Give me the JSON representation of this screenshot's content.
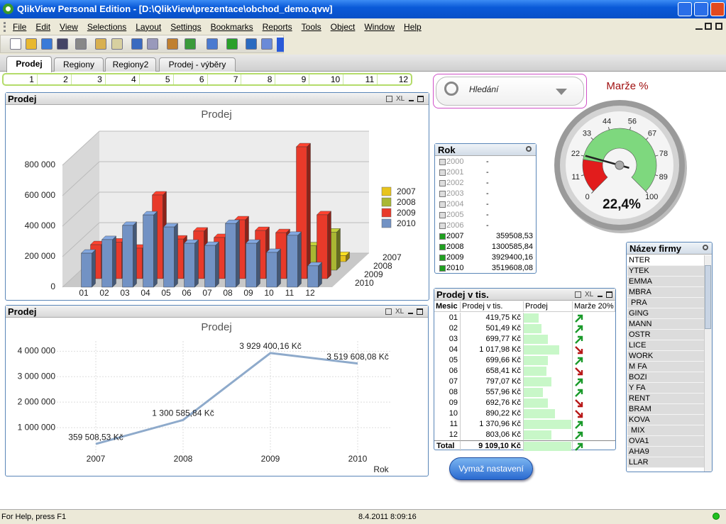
{
  "window": {
    "title": "QlikView Personal Edition - [D:\\QlikView\\prezentace\\obchod_demo.qvw]"
  },
  "menu": [
    "File",
    "Edit",
    "View",
    "Selections",
    "Layout",
    "Settings",
    "Bookmarks",
    "Reports",
    "Tools",
    "Object",
    "Window",
    "Help"
  ],
  "tabs": {
    "items": [
      "Prodej",
      "Regiony",
      "Regiony2",
      "Prodej - výběry"
    ],
    "active": 0
  },
  "month_bar": [
    "1",
    "2",
    "3",
    "4",
    "5",
    "6",
    "7",
    "8",
    "9",
    "10",
    "11",
    "12"
  ],
  "search": {
    "placeholder": "Hledání"
  },
  "panel_icon_label": "XL",
  "rok_list": {
    "title": "Rok",
    "rows": [
      {
        "year": "2000",
        "value": "-",
        "selected": false
      },
      {
        "year": "2001",
        "value": "-",
        "selected": false
      },
      {
        "year": "2002",
        "value": "-",
        "selected": false
      },
      {
        "year": "2003",
        "value": "-",
        "selected": false
      },
      {
        "year": "2004",
        "value": "-",
        "selected": false
      },
      {
        "year": "2005",
        "value": "-",
        "selected": false
      },
      {
        "year": "2006",
        "value": "-",
        "selected": false
      },
      {
        "year": "2007",
        "value": "359508,53",
        "selected": true
      },
      {
        "year": "2008",
        "value": "1300585,84",
        "selected": true
      },
      {
        "year": "2009",
        "value": "3929400,16",
        "selected": true
      },
      {
        "year": "2010",
        "value": "3519608,08",
        "selected": true
      }
    ]
  },
  "table": {
    "title": "Prodej v tis.",
    "headers": [
      "Mesic",
      "Prodej v tis.",
      "Prodej",
      "Marže 20%"
    ],
    "rows": [
      {
        "month": "01",
        "value": 419.75,
        "label": "419,75 Kč",
        "trend": "up"
      },
      {
        "month": "02",
        "value": 501.49,
        "label": "501,49 Kč",
        "trend": "up"
      },
      {
        "month": "03",
        "value": 699.77,
        "label": "699,77 Kč",
        "trend": "up"
      },
      {
        "month": "04",
        "value": 1017.98,
        "label": "1 017,98 Kč",
        "trend": "down"
      },
      {
        "month": "05",
        "value": 699.66,
        "label": "699,66 Kč",
        "trend": "up"
      },
      {
        "month": "06",
        "value": 658.41,
        "label": "658,41 Kč",
        "trend": "down"
      },
      {
        "month": "07",
        "value": 797.07,
        "label": "797,07 Kč",
        "trend": "up"
      },
      {
        "month": "08",
        "value": 557.96,
        "label": "557,96 Kč",
        "trend": "up"
      },
      {
        "month": "09",
        "value": 692.76,
        "label": "692,76 Kč",
        "trend": "down"
      },
      {
        "month": "10",
        "value": 890.22,
        "label": "890,22 Kč",
        "trend": "down"
      },
      {
        "month": "11",
        "value": 1370.96,
        "label": "1 370,96 Kč",
        "trend": "up"
      },
      {
        "month": "12",
        "value": 803.06,
        "label": "803,06 Kč",
        "trend": "up"
      }
    ],
    "total": {
      "month": "Total",
      "value": 9109.1,
      "label": "9 109,10 Kč",
      "trend": "up"
    }
  },
  "firm_list": {
    "title": "Název firmy",
    "items": [
      "NTER",
      "YTEK",
      "EMMA",
      "MBRA",
      " PRA",
      "GING",
      "MANN",
      "OSTR",
      "LICE",
      "WORK",
      "M FA",
      "BOZI",
      "Y FA",
      "RENT",
      "BRAM",
      "KOVA",
      " MIX",
      "OVA1",
      "AHA9",
      "LLAR"
    ]
  },
  "button": "Vymaž nastavení",
  "status": {
    "help": "For Help, press F1",
    "datetime": "8.4.2011 8:09:16"
  },
  "chart_data": [
    {
      "type": "bar3d",
      "caption": "Prodej",
      "title": "Prodej",
      "categories": [
        "01",
        "02",
        "03",
        "04",
        "05",
        "06",
        "07",
        "08",
        "09",
        "10",
        "11",
        "12"
      ],
      "series": [
        {
          "name": "2007",
          "color": "#e8c41c",
          "values": [
            20000,
            30000,
            25000,
            40000,
            30000,
            35000,
            30000,
            40000,
            35000,
            40000,
            45000,
            40000
          ]
        },
        {
          "name": "2008",
          "color": "#a9b733",
          "values": [
            60000,
            70000,
            60000,
            120000,
            80000,
            110000,
            90000,
            120000,
            100000,
            110000,
            160000,
            250000
          ]
        },
        {
          "name": "2009",
          "color": "#e83a2a",
          "values": [
            223000,
            240000,
            200000,
            549000,
            260000,
            312000,
            270000,
            386000,
            316000,
            302000,
            865000,
            419000
          ]
        },
        {
          "name": "2010",
          "color": "#7292c4",
          "values": [
            223000,
            312000,
            405000,
            474000,
            395000,
            288000,
            274000,
            418000,
            288000,
            228000,
            340000,
            140000
          ]
        }
      ],
      "ylim": [
        0,
        800000
      ],
      "yticks": [
        0,
        {
          "value": 200000,
          "label": "200 000"
        },
        {
          "value": 400000,
          "label": "400 000"
        },
        {
          "value": 600000,
          "label": "600 000"
        },
        {
          "value": 800000,
          "label": "800 000"
        }
      ],
      "grid": true,
      "legend": "right"
    },
    {
      "type": "line",
      "caption": "Prodej",
      "title": "Prodej",
      "x_label": "Rok",
      "categories": [
        "2007",
        "2008",
        "2009",
        "2010"
      ],
      "values": [
        359508.53,
        1300585.84,
        3929400.16,
        3519608.08
      ],
      "value_labels": [
        "359 508,53 Kč",
        "1 300 585,84 Kč",
        "3 929 400,16 Kč",
        "3 519 608,08 Kč"
      ],
      "color": "#8eaacb",
      "ylim": [
        0,
        4400000
      ],
      "yticks": [
        {
          "value": 1000000,
          "label": "1 000 000"
        },
        {
          "value": 2000000,
          "label": "2 000 000"
        },
        {
          "value": 3000000,
          "label": "3 000 000"
        },
        {
          "value": 4000000,
          "label": "4 000 000"
        }
      ],
      "grid": true
    },
    {
      "type": "gauge",
      "title": "Marže %",
      "value": 22.4,
      "value_label": "22,4%",
      "ylim": [
        0,
        100
      ],
      "yticks": [
        0,
        11,
        22,
        33,
        44,
        56,
        67,
        78,
        89,
        100
      ],
      "segments": [
        {
          "from": 0,
          "to": 20,
          "color": "#e21c1c"
        },
        {
          "from": 20,
          "to": 100,
          "color": "#7ed87e"
        }
      ]
    }
  ]
}
